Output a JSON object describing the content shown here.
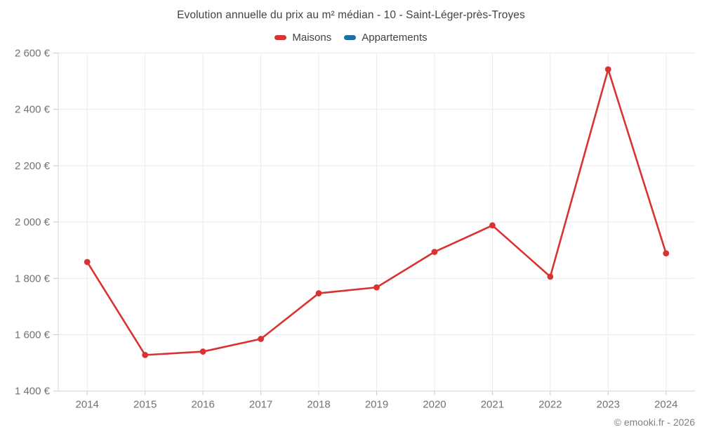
{
  "title": "Evolution annuelle du prix au m² médian - 10 - Saint-Léger-près-Troyes",
  "footer": "© emooki.fr - 2026",
  "colors": {
    "maisons": "#d93331",
    "appartements": "#1d6fa5",
    "grid": "#ebebeb",
    "axis": "#d8d8d8",
    "tick": "#c9c9c9",
    "tick_text": "#6f7276"
  },
  "legend": {
    "items": [
      {
        "label": "Maisons",
        "color": "#d93331"
      },
      {
        "label": "Appartements",
        "color": "#1d6fa5"
      }
    ]
  },
  "chart_data": {
    "type": "line",
    "title": "Evolution annuelle du prix au m² médian - 10 - Saint-Léger-près-Troyes",
    "x": [
      2014,
      2015,
      2016,
      2017,
      2018,
      2019,
      2020,
      2021,
      2022,
      2023,
      2024
    ],
    "xtick_labels": [
      "2014",
      "2015",
      "2016",
      "2017",
      "2018",
      "2019",
      "2020",
      "2021",
      "2022",
      "2023",
      "2024"
    ],
    "series": [
      {
        "name": "Maisons",
        "color": "#d93331",
        "values": [
          1858,
          1528,
          1540,
          1585,
          1747,
          1768,
          1894,
          1988,
          1806,
          2542,
          1889
        ]
      },
      {
        "name": "Appartements",
        "color": "#1d6fa5",
        "values": []
      }
    ],
    "ylabel": "",
    "xlabel": "",
    "ylim": [
      1400,
      2600
    ],
    "ytick_step": 200,
    "yticks": [
      1400,
      1600,
      1800,
      2000,
      2200,
      2400,
      2600
    ],
    "ytick_labels": [
      "1 400 €",
      "1 600 €",
      "1 800 €",
      "2 000 €",
      "2 200 €",
      "2 400 €",
      "2 600 €"
    ],
    "grid": true,
    "legend_position": "top",
    "unit": "€"
  }
}
